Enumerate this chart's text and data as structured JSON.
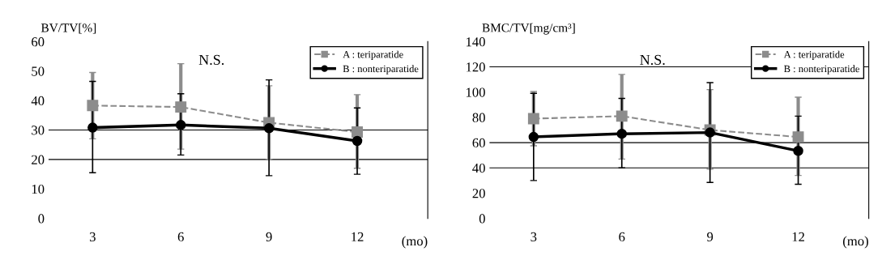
{
  "chart_data": [
    {
      "type": "line",
      "ylabel": "BV/TV[%]",
      "xlabel": "(mo)",
      "annotations": [
        "N.S."
      ],
      "categories": [
        "3",
        "6",
        "9",
        "12"
      ],
      "ylim": [
        0,
        60
      ],
      "yticks": [
        0,
        10,
        20,
        30,
        40,
        50,
        60
      ],
      "grid": false,
      "legend": "top right",
      "ref_lines": [
        {
          "axis": "y",
          "value": 20,
          "color": "#000000"
        },
        {
          "axis": "y",
          "value": 30,
          "color": "#000000"
        }
      ],
      "series": [
        {
          "name": "A : teriparatide",
          "color": "#8c8c8c",
          "line_style": "dashed",
          "marker": "square",
          "values": [
            38.3,
            37.8,
            32.5,
            29.3
          ],
          "errors": [
            [
              27,
              49.5
            ],
            [
              23.5,
              52.5
            ],
            [
              20,
              45
            ],
            [
              17,
              42
            ]
          ]
        },
        {
          "name": "B : nonteriparatide",
          "color": "#000000",
          "line_style": "solid",
          "marker": "circle",
          "values": [
            30.8,
            31.7,
            30.6,
            26.3
          ],
          "errors": [
            [
              15.5,
              46.5
            ],
            [
              21.5,
              42.3
            ],
            [
              14.5,
              47
            ],
            [
              15,
              37.5
            ]
          ]
        }
      ]
    },
    {
      "type": "line",
      "ylabel": "BMC/TV[mg/cm³]",
      "xlabel": "(mo)",
      "annotations": [
        "N.S."
      ],
      "categories": [
        "3",
        "6",
        "9",
        "12"
      ],
      "ylim": [
        0,
        140
      ],
      "yticks": [
        0,
        20,
        40,
        60,
        80,
        100,
        120,
        140
      ],
      "grid": false,
      "legend": "top right",
      "ref_lines": [
        {
          "axis": "y",
          "value": 40,
          "color": "#000000"
        },
        {
          "axis": "y",
          "value": 60,
          "color": "#000000"
        },
        {
          "axis": "y",
          "value": 120,
          "color": "#000000"
        }
      ],
      "series": [
        {
          "name": "A : teriparatide",
          "color": "#8c8c8c",
          "line_style": "dashed",
          "marker": "square",
          "values": [
            79,
            81,
            70,
            64.5
          ],
          "errors": [
            [
              57.5,
              100.5
            ],
            [
              47,
              114
            ],
            [
              39,
              102
            ],
            [
              34,
              96
            ]
          ]
        },
        {
          "name": "B : nonteriparatide",
          "color": "#000000",
          "line_style": "solid",
          "marker": "circle",
          "values": [
            64.5,
            67,
            68,
            53.5
          ],
          "errors": [
            [
              30,
              99
            ],
            [
              40,
              95
            ],
            [
              28.5,
              107.5
            ],
            [
              27,
              81
            ]
          ]
        }
      ]
    }
  ]
}
